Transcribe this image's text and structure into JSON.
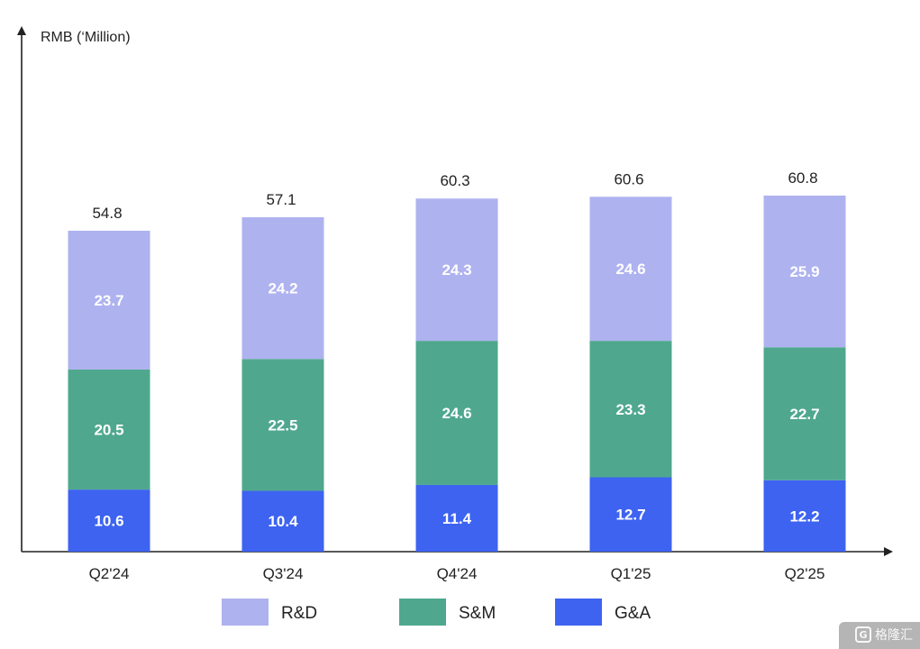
{
  "chart_data": {
    "type": "bar",
    "stacked": true,
    "ylabel": "RMB (‘Million)",
    "categories": [
      "Q2'24",
      "Q3'24",
      "Q4'24",
      "Q1'25",
      "Q2'25"
    ],
    "series": [
      {
        "name": "G&A",
        "values": [
          10.6,
          10.4,
          11.4,
          12.7,
          12.2
        ],
        "color": "#3d63f0"
      },
      {
        "name": "S&M",
        "values": [
          20.5,
          22.5,
          24.6,
          23.3,
          22.7
        ],
        "color": "#4fa88e"
      },
      {
        "name": "R&D",
        "values": [
          23.7,
          24.2,
          24.3,
          24.6,
          25.9
        ],
        "color": "#aeb2ef"
      }
    ],
    "totals": [
      54.8,
      57.1,
      60.3,
      60.6,
      60.8
    ],
    "legend": {
      "position": "bottom",
      "order": [
        "R&D",
        "S&M",
        "G&A"
      ]
    },
    "grid": false,
    "ylim": [
      0,
      60.8
    ]
  },
  "watermark": {
    "text": "格隆汇",
    "badge": "G"
  }
}
